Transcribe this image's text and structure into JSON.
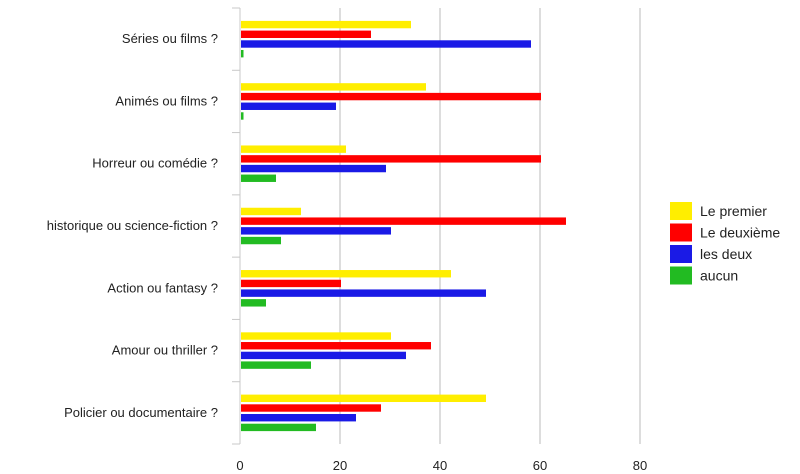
{
  "chart_data": {
    "type": "bar",
    "orientation": "horizontal",
    "categories": [
      "Séries ou films ?",
      "Animés ou films ?",
      "Horreur ou comédie ?",
      "historique ou science-fiction ?",
      "Action ou fantasy ?",
      "Amour ou thriller ?",
      "Policier ou documentaire ?"
    ],
    "series": [
      {
        "name": "Le premier",
        "color": "#ffee00",
        "values": [
          34,
          37,
          21,
          12,
          42,
          30,
          49
        ]
      },
      {
        "name": "Le deuxième",
        "color": "#ff0000",
        "values": [
          26,
          60,
          60,
          65,
          20,
          38,
          28
        ]
      },
      {
        "name": "les deux",
        "color": "#1a1ae6",
        "values": [
          58,
          19,
          29,
          30,
          49,
          33,
          23
        ]
      },
      {
        "name": "aucun",
        "color": "#22bb22",
        "values": [
          0.5,
          0.5,
          7,
          8,
          5,
          14,
          15
        ]
      }
    ],
    "xlim": [
      0,
      80
    ],
    "xticks": [
      0,
      20,
      40,
      60,
      80
    ],
    "grid": true,
    "legend_position": "right",
    "title": "",
    "xlabel": "",
    "ylabel": ""
  }
}
